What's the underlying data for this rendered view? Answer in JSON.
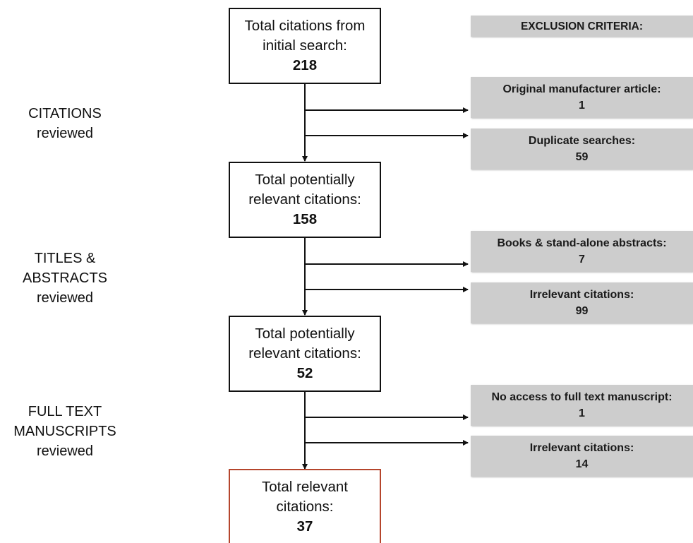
{
  "stages": [
    {
      "line1": "CITATIONS",
      "line2": "reviewed"
    },
    {
      "line1": "TITLES &",
      "line2": "ABSTRACTS",
      "line3": "reviewed"
    },
    {
      "line1": "FULL TEXT",
      "line2": "MANUSCRIPTS",
      "line3": "reviewed"
    }
  ],
  "boxes": [
    {
      "line1": "Total citations from",
      "line2": "initial search:",
      "count": "218"
    },
    {
      "line1": "Total potentially",
      "line2": "relevant citations:",
      "count": "158"
    },
    {
      "line1": "Total potentially",
      "line2": "relevant citations:",
      "count": "52"
    },
    {
      "line1": "Total relevant",
      "line2": "citations:",
      "count": "37"
    }
  ],
  "exclusion_header": "EXCLUSION CRITERIA:",
  "exclusions": [
    {
      "label": "Original manufacturer article:",
      "count": "1"
    },
    {
      "label": "Duplicate searches:",
      "count": "59"
    },
    {
      "label": "Books & stand-alone abstracts:",
      "count": "7"
    },
    {
      "label": "Irrelevant citations:",
      "count": "99"
    },
    {
      "label": "No access to full text manuscript:",
      "count": "1"
    },
    {
      "label": "Irrelevant citations:",
      "count": "14"
    }
  ],
  "colors": {
    "final_box_border": "#b5452c",
    "exclusion_fill": "#cdcdcd"
  }
}
